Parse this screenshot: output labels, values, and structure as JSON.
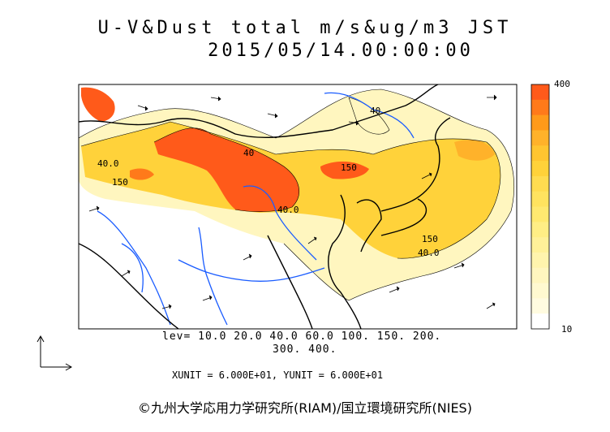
{
  "title": {
    "line1": "U-V&Dust total m/s&ug/m3 JST",
    "line2": "2015/05/14.00:00:00"
  },
  "colorbar": {
    "max_label": "400",
    "min_label": "10",
    "colors": [
      "#ff5a1a",
      "#ff7a1a",
      "#ff9a1a",
      "#ffb22a",
      "#ffc530",
      "#ffd23a",
      "#ffdc50",
      "#ffe35f",
      "#ffe970",
      "#ffee85",
      "#fff199",
      "#fff4ad",
      "#fff6bf",
      "#fff9d0",
      "#fffbe0",
      "#ffffff"
    ]
  },
  "contour_labels": [
    "40",
    "40.0",
    "150",
    "40.0",
    "150",
    "40",
    "150",
    "40.0"
  ],
  "legend": {
    "lev_line1": "lev= 10.0 20.0 40.0 60.0 100. 150. 200.",
    "lev_line2": "300. 400.",
    "unit_line": "XUNIT = 6.000E+01, YUNIT = 6.000E+01"
  },
  "credit": "©九州大学応用力学研究所(RIAM)/国立環境研究所(NIES)",
  "colors": {
    "dust_high": "#ff5a1a",
    "dust_mid": "#ffd23a",
    "dust_low": "#fff6bf",
    "river": "#1a5cff",
    "coast": "#000000"
  }
}
